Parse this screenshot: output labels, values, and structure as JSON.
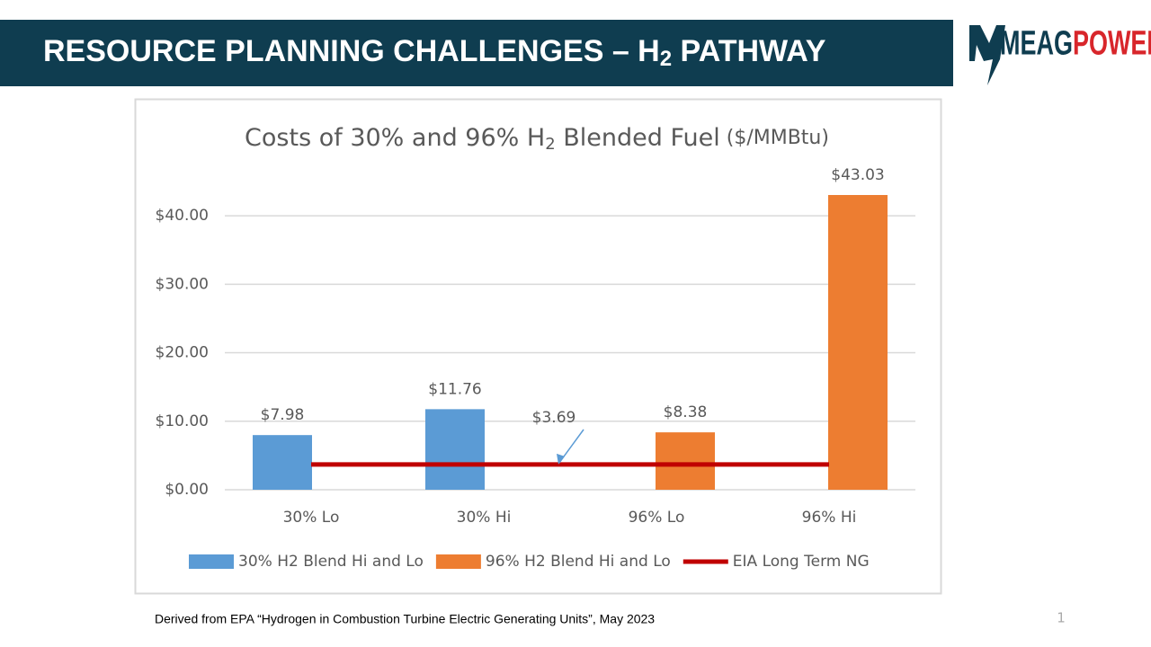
{
  "header": {
    "title": "RESOURCE PLANNING CHALLENGES – H",
    "title_subscript": "2",
    "title_end": " PATHWAY"
  },
  "logo": {
    "part1": "MEAG",
    "part2": "POWER"
  },
  "footnote": "Derived from EPA “Hydrogen in Combustion Turbine Electric Generating Units”, May 2023",
  "page_number": "1",
  "chart_data": {
    "type": "bar",
    "title": "Costs of 30% and 96% H",
    "title_subscript": "2",
    "title_end": " Blended Fuel",
    "title_units": " ($/MMBtu)",
    "categories": [
      "30% Lo",
      "30% Hi",
      "96% Lo",
      "96% Hi"
    ],
    "series": [
      {
        "name": "30% H2 Blend Hi and Lo",
        "color": "#5b9bd5",
        "values": [
          7.98,
          11.76,
          null,
          null
        ],
        "value_labels": [
          "$7.98",
          "$11.76",
          null,
          null
        ]
      },
      {
        "name": "96% H2 Blend Hi and Lo",
        "color": "#ed7d31",
        "values": [
          null,
          null,
          8.38,
          43.03
        ],
        "value_labels": [
          null,
          null,
          "$8.38",
          "$43.03"
        ]
      },
      {
        "name": "EIA Long Term NG",
        "type": "line",
        "color": "#c00000",
        "values": [
          3.69,
          3.69,
          3.69,
          3.69
        ]
      }
    ],
    "annotation": "$3.69",
    "ylim": [
      0,
      45
    ],
    "yticks": [
      {
        "value": 0,
        "label": "$0.00"
      },
      {
        "value": 10,
        "label": "$10.00"
      },
      {
        "value": 20,
        "label": "$20.00"
      },
      {
        "value": 30,
        "label": "$30.00"
      },
      {
        "value": 40,
        "label": "$40.00"
      }
    ],
    "grid": true,
    "legend": "bottom"
  }
}
